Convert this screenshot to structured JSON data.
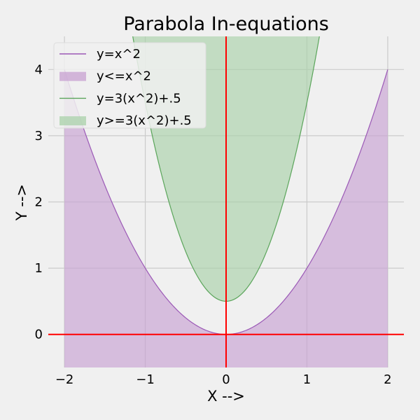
{
  "chart_data": {
    "type": "area",
    "title": "Parabola In-equations",
    "xlabel": "X -->",
    "ylabel": "Y -->",
    "xlim": [
      -2.2,
      2.2
    ],
    "ylim": [
      -0.5,
      4.5
    ],
    "x_ticks": [
      -2,
      -1,
      0,
      1,
      2
    ],
    "x_tick_labels": [
      "−2",
      "−1",
      "0",
      "1",
      "2"
    ],
    "y_ticks": [
      0,
      1,
      2,
      3,
      4
    ],
    "y_tick_labels": [
      "0",
      "1",
      "2",
      "3",
      "4"
    ],
    "grid": true,
    "x_range": [
      -2,
      2
    ],
    "series": [
      {
        "name": "y=x^2",
        "kind": "line",
        "a": 1,
        "b": 0,
        "color": "#9b59b6"
      },
      {
        "name": "y<=x^2",
        "kind": "fill-below",
        "a": 1,
        "b": 0,
        "color": "#c8a2d2"
      },
      {
        "name": "y=3(x^2)+.5",
        "kind": "line",
        "a": 3,
        "b": 0.5,
        "color": "#5ba55b"
      },
      {
        "name": "y>=3(x^2)+.5",
        "kind": "fill-above",
        "a": 3,
        "b": 0.5,
        "color": "#a9d1a9"
      }
    ],
    "reference_lines": [
      {
        "orientation": "vertical",
        "value": 0,
        "color": "#ff0000"
      },
      {
        "orientation": "horizontal",
        "value": 0,
        "color": "#ff0000"
      }
    ],
    "legend_position": "top-left"
  }
}
